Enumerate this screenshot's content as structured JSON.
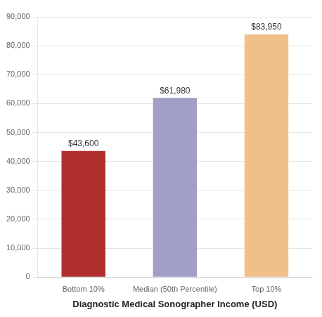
{
  "chart_data": {
    "type": "bar",
    "xlabel": "Diagnostic Medical Sonographer Income (USD)",
    "categories": [
      "Bottom 10%",
      "Median (50th Percentile)",
      "Top 10%"
    ],
    "values": [
      43600,
      61980,
      83950
    ],
    "value_labels": [
      "$43,600",
      "$61,980",
      "$83,950"
    ],
    "colors": [
      "#b03030",
      "#9f9fc8",
      "#f0c08a"
    ],
    "data_labels": true,
    "ylim": [
      0,
      90000
    ],
    "yticks": [
      0,
      {
        "value": 10000,
        "label": "10,000"
      },
      {
        "value": 20000,
        "label": "20,000"
      },
      {
        "value": 30000,
        "label": "30,000"
      },
      {
        "value": 40000,
        "label": "40,000"
      },
      {
        "value": 50000,
        "label": "50,000"
      },
      {
        "value": 60000,
        "label": "60,000"
      },
      {
        "value": 70000,
        "label": "70,000"
      },
      {
        "value": 80000,
        "label": "80,000"
      },
      {
        "value": 90000,
        "label": "90,000"
      }
    ],
    "grid": true
  }
}
